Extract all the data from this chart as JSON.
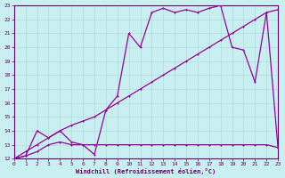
{
  "xlabel": "Windchill (Refroidissement éolien,°C)",
  "xlim": [
    0,
    23
  ],
  "ylim": [
    12,
    23
  ],
  "xticks": [
    0,
    1,
    2,
    3,
    4,
    5,
    6,
    7,
    8,
    9,
    10,
    11,
    12,
    13,
    14,
    15,
    16,
    17,
    18,
    19,
    20,
    21,
    22,
    23
  ],
  "yticks": [
    12,
    13,
    14,
    15,
    16,
    17,
    18,
    19,
    20,
    21,
    22,
    23
  ],
  "bg_color": "#c8f0f0",
  "grid_color": "#b0dede",
  "line_color": "#990099",
  "line1_x": [
    0,
    1,
    2,
    3,
    4,
    5,
    6,
    7,
    8,
    9,
    10,
    11,
    12,
    13,
    14,
    15,
    16,
    17,
    18,
    19,
    20,
    21,
    22,
    23
  ],
  "line1_y": [
    12.0,
    12.2,
    12.5,
    13.0,
    13.2,
    13.0,
    13.0,
    13.0,
    13.0,
    13.0,
    13.0,
    13.0,
    13.0,
    13.0,
    13.0,
    13.0,
    13.0,
    13.0,
    13.0,
    13.0,
    13.0,
    13.0,
    13.0,
    12.8
  ],
  "line2_x": [
    0,
    1,
    2,
    3,
    4,
    5,
    6,
    7,
    8,
    9,
    10,
    11,
    12,
    13,
    14,
    15,
    16,
    17,
    18,
    19,
    20,
    21,
    22,
    23
  ],
  "line2_y": [
    12.0,
    12.5,
    13.0,
    13.5,
    14.0,
    14.4,
    14.7,
    15.0,
    15.5,
    16.0,
    16.5,
    17.0,
    17.5,
    18.0,
    18.5,
    19.0,
    19.5,
    20.0,
    20.5,
    21.0,
    21.5,
    22.0,
    22.5,
    22.7
  ],
  "line3_x": [
    0,
    1,
    2,
    3,
    4,
    5,
    6,
    7,
    8,
    9,
    10,
    11,
    12,
    13,
    14,
    15,
    16,
    17,
    18,
    19,
    20,
    21,
    22,
    23
  ],
  "line3_y": [
    12.0,
    12.2,
    14.0,
    13.5,
    14.0,
    13.2,
    13.0,
    12.3,
    15.5,
    16.5,
    21.0,
    20.0,
    22.5,
    22.8,
    22.5,
    22.7,
    22.5,
    22.8,
    23.0,
    20.0,
    19.8,
    17.5,
    22.5,
    12.8
  ]
}
